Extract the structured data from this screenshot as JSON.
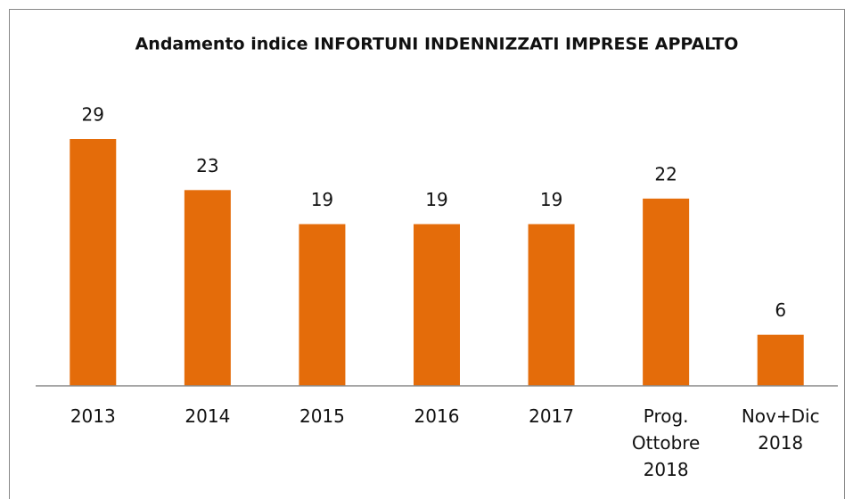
{
  "chart_data": {
    "type": "bar",
    "title": "Andamento indice INFORTUNI INDENNIZZATI IMPRESE APPALTO",
    "categories": [
      "2013",
      "2014",
      "2015",
      "2016",
      "2017",
      "Prog. Ottobre 2018",
      "Nov+Dic 2018"
    ],
    "values": [
      29,
      23,
      19,
      19,
      19,
      22,
      6
    ],
    "color": "#e46c0a"
  }
}
